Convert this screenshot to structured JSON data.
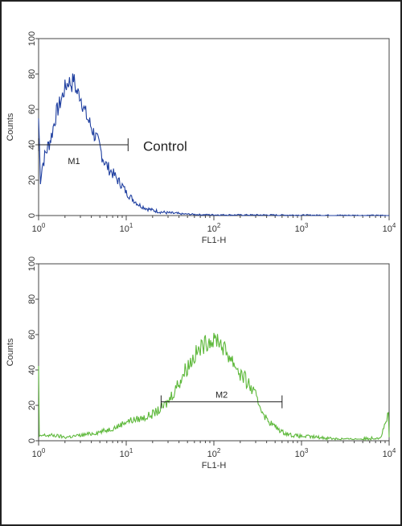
{
  "chart_data": [
    {
      "type": "line",
      "xscale": "log",
      "xlim": [
        1,
        10000
      ],
      "ylim": [
        0,
        100
      ],
      "xlabel": "FL1-H",
      "ylabel": "Counts",
      "yticks": [
        "0",
        "20",
        "40",
        "60",
        "80",
        "100"
      ],
      "xticks": [
        {
          "base": "10",
          "exp": "0",
          "value": 1
        },
        {
          "base": "10",
          "exp": "1",
          "value": 10
        },
        {
          "base": "10",
          "exp": "2",
          "value": 100
        },
        {
          "base": "10",
          "exp": "3",
          "value": 1000
        },
        {
          "base": "10",
          "exp": "4",
          "value": 10000
        }
      ],
      "color": "#1f3fa0",
      "series": [
        {
          "x": [
            1,
            1.05,
            1.1,
            1.2,
            1.3,
            1.4,
            1.5,
            1.6,
            1.8,
            2.0,
            2.2,
            2.4,
            2.5,
            2.7,
            3.0,
            3.3,
            3.6,
            4.0,
            4.5,
            5.0,
            5.5,
            6.0,
            7.0,
            8.0,
            9.0,
            10,
            12,
            14,
            17,
            20,
            25,
            30,
            40,
            50,
            70,
            100,
            200,
            400,
            1000,
            3000,
            10000
          ],
          "y": [
            55,
            20,
            28,
            35,
            40,
            45,
            52,
            58,
            65,
            72,
            76,
            74,
            78,
            70,
            68,
            60,
            55,
            50,
            44,
            38,
            32,
            28,
            24,
            20,
            17,
            13,
            9,
            6,
            4,
            3,
            2,
            1.5,
            1,
            0.8,
            0.5,
            0.4,
            0.3,
            0.3,
            0.2,
            0.1,
            0
          ]
        }
      ],
      "gates": [
        {
          "label": "M1",
          "x_start": 1,
          "x_end": 10.5,
          "y": 40
        }
      ],
      "annotations": [
        {
          "text": "Control"
        }
      ]
    },
    {
      "type": "line",
      "xscale": "log",
      "xlim": [
        1,
        10000
      ],
      "ylim": [
        0,
        100
      ],
      "xlabel": "FL1-H",
      "ylabel": "Counts",
      "yticks": [
        "0",
        "20",
        "40",
        "60",
        "80",
        "100"
      ],
      "xticks": [
        {
          "base": "10",
          "exp": "0",
          "value": 1
        },
        {
          "base": "10",
          "exp": "1",
          "value": 10
        },
        {
          "base": "10",
          "exp": "2",
          "value": 100
        },
        {
          "base": "10",
          "exp": "3",
          "value": 1000
        },
        {
          "base": "10",
          "exp": "4",
          "value": 10000
        }
      ],
      "color": "#5db83a",
      "series": [
        {
          "x": [
            1,
            1.02,
            1.1,
            1.5,
            2,
            3,
            4,
            5,
            6,
            8,
            10,
            13,
            16,
            20,
            25,
            30,
            35,
            40,
            45,
            50,
            60,
            70,
            80,
            90,
            100,
            110,
            120,
            130,
            150,
            180,
            200,
            250,
            300,
            350,
            400,
            500,
            600,
            800,
            1000,
            1500,
            2000,
            3000,
            5000,
            8000,
            9800,
            10000
          ],
          "y": [
            40,
            2,
            3,
            3,
            2,
            3,
            4,
            5,
            6,
            8,
            11,
            12,
            13,
            15,
            18,
            22,
            28,
            33,
            38,
            42,
            48,
            52,
            55,
            57,
            56,
            58,
            55,
            52,
            48,
            42,
            38,
            32,
            25,
            18,
            12,
            8,
            5,
            3,
            2.5,
            2,
            1.5,
            1,
            1,
            2,
            15,
            2
          ]
        }
      ],
      "gates": [
        {
          "label": "M2",
          "x_start": 25,
          "x_end": 600,
          "y": 22
        }
      ],
      "annotations": []
    }
  ]
}
